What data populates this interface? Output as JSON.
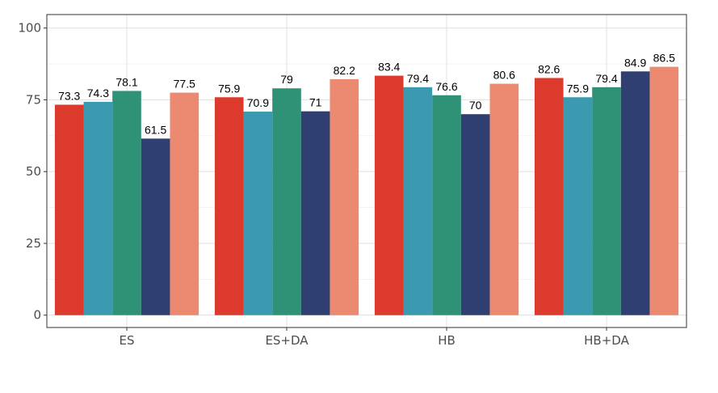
{
  "chart_data": {
    "type": "bar",
    "categories": [
      "ES",
      "ES+DA",
      "HB",
      "HB+DA"
    ],
    "series": [
      {
        "values": [
          73.3,
          75.9,
          83.4,
          82.6
        ],
        "color": "#dc3a2c"
      },
      {
        "values": [
          74.3,
          70.9,
          79.4,
          75.9
        ],
        "color": "#3b9ab0"
      },
      {
        "values": [
          78.1,
          79,
          76.6,
          79.4
        ],
        "color": "#2f9276"
      },
      {
        "values": [
          61.5,
          71,
          70,
          84.9
        ],
        "color": "#2f3f72"
      },
      {
        "values": [
          77.5,
          82.2,
          80.6,
          86.5
        ],
        "color": "#eb8a70"
      }
    ],
    "yticks": [
      0,
      25,
      50,
      75,
      100
    ],
    "ylim": [
      -4.3,
      104.7
    ],
    "title": "",
    "xlabel": "",
    "ylabel": "",
    "grid": true,
    "legend": "none"
  }
}
